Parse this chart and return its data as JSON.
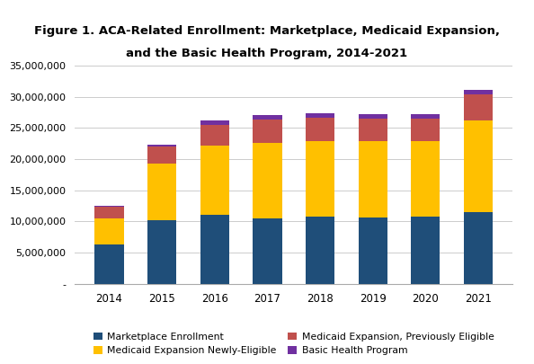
{
  "years": [
    "2014",
    "2015",
    "2016",
    "2017",
    "2018",
    "2019",
    "2020",
    "2021"
  ],
  "marketplace": [
    6300000,
    10150000,
    11100000,
    10450000,
    10750000,
    10650000,
    10750000,
    11500000
  ],
  "medicaid_new": [
    4200000,
    9200000,
    11100000,
    12100000,
    12200000,
    12250000,
    12200000,
    14700000
  ],
  "medicaid_prev": [
    1900000,
    2650000,
    3350000,
    3800000,
    3750000,
    3600000,
    3550000,
    4200000
  ],
  "basic_health": [
    100000,
    350000,
    650000,
    700000,
    650000,
    650000,
    650000,
    650000
  ],
  "colors": {
    "marketplace": "#1F4E79",
    "medicaid_new": "#FFC000",
    "medicaid_prev": "#C0504D",
    "basic_health": "#7030A0"
  },
  "title_line1": "Figure 1. ACA-Related Enrollment: Marketplace, Medicaid Expansion,",
  "title_line2": "and the Basic Health Program, 2014-2021",
  "legend_col1": [
    "Marketplace Enrollment",
    "Medicaid Expansion, Previously Eligible"
  ],
  "legend_col2": [
    "Medicaid Expansion Newly-Eligible",
    "Basic Health Program"
  ],
  "ylim": [
    0,
    35000000
  ],
  "yticks": [
    0,
    5000000,
    10000000,
    15000000,
    20000000,
    25000000,
    30000000,
    35000000
  ],
  "plot_bg": "#F2F2F2",
  "fig_bg": "#FFFFFF"
}
